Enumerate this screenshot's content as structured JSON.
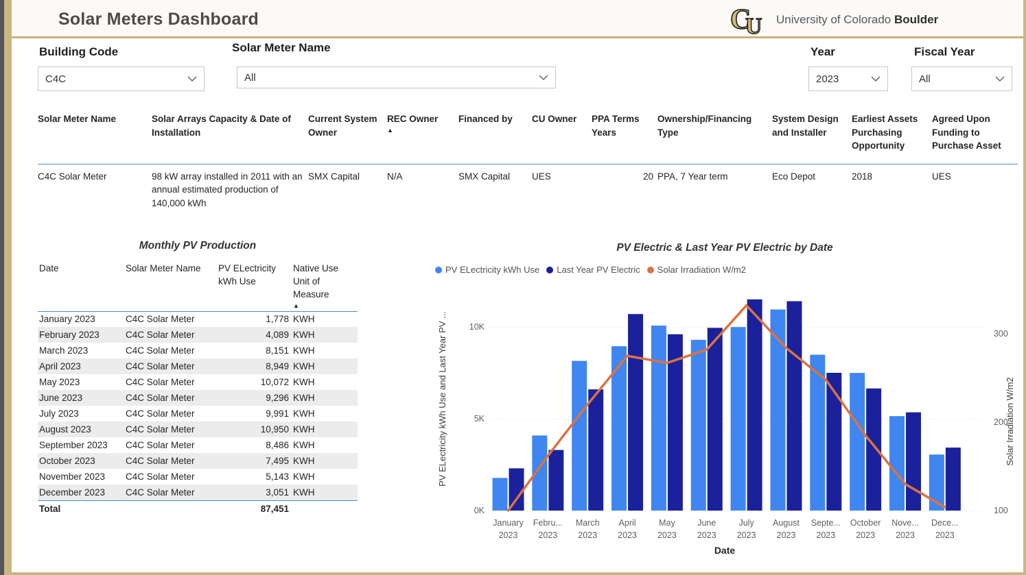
{
  "header": {
    "title": "Solar Meters Dashboard",
    "logo": {
      "monogram": "CU",
      "university": "University of Colorado",
      "campus": "Boulder"
    }
  },
  "filters": {
    "building_code": {
      "label": "Building Code",
      "value": "C4C"
    },
    "solar_meter_name": {
      "label": "Solar Meter Name",
      "value": "All"
    },
    "year": {
      "label": "Year",
      "value": "2023"
    },
    "fiscal_year": {
      "label": "Fiscal Year",
      "value": "All"
    }
  },
  "meter_table": {
    "columns": [
      "Solar Meter Name",
      "Solar Arrays Capacity & Date of Installation",
      "Current System Owner",
      "REC Owner",
      "Financed by",
      "CU Owner",
      "PPA Terms Years",
      "Ownership/Financing Type",
      "System Design and Installer",
      "Earliest Assets Purchasing Opportunity",
      "Agreed Upon Funding to Purchase Asset"
    ],
    "sort_column_index": 3,
    "sort_indicator": "▲",
    "row": [
      "C4C Solar Meter",
      "98 kW array installed in 2011 with an annual estimated production of 140,000 kWh",
      "SMX Capital",
      "N/A",
      "SMX Capital",
      "UES",
      "20",
      "PPA, 7 Year term",
      "Eco Depot",
      "2018",
      "UES"
    ],
    "numeric_column_indexes": [
      6
    ]
  },
  "monthly_table": {
    "title": "Monthly PV Production",
    "columns": [
      "Date",
      "Solar Meter Name",
      "PV ELectricity kWh Use",
      "Native Use Unit of Measure"
    ],
    "sort_column_index": 3,
    "sort_indicator": "▲",
    "rows": [
      [
        "January 2023",
        "C4C Solar Meter",
        "1,778",
        "KWH"
      ],
      [
        "February 2023",
        "C4C Solar Meter",
        "4,089",
        "KWH"
      ],
      [
        "March 2023",
        "C4C Solar Meter",
        "8,151",
        "KWH"
      ],
      [
        "April 2023",
        "C4C Solar Meter",
        "8,949",
        "KWH"
      ],
      [
        "May 2023",
        "C4C Solar Meter",
        "10,072",
        "KWH"
      ],
      [
        "June 2023",
        "C4C Solar Meter",
        "9,296",
        "KWH"
      ],
      [
        "July 2023",
        "C4C Solar Meter",
        "9,991",
        "KWH"
      ],
      [
        "August 2023",
        "C4C Solar Meter",
        "10,950",
        "KWH"
      ],
      [
        "September 2023",
        "C4C Solar Meter",
        "8,486",
        "KWH"
      ],
      [
        "October 2023",
        "C4C Solar Meter",
        "7,495",
        "KWH"
      ],
      [
        "November 2023",
        "C4C Solar Meter",
        "5,143",
        "KWH"
      ],
      [
        "December 2023",
        "C4C Solar Meter",
        "3,051",
        "KWH"
      ]
    ],
    "total_label": "Total",
    "total_value": "87,451"
  },
  "chart_data": {
    "type": "combo-bar-line",
    "title": "PV Electric & Last Year PV Electric by Date",
    "xlabel": "Date",
    "x_categories": [
      "January 2023",
      "February 2023",
      "March 2023",
      "April 2023",
      "May 2023",
      "June 2023",
      "July 2023",
      "August 2023",
      "September 2023",
      "October 2023",
      "November 2023",
      "December 2023"
    ],
    "x_tick_labels": [
      [
        "January",
        "2023"
      ],
      [
        "Febru...",
        "2023"
      ],
      [
        "March",
        "2023"
      ],
      [
        "April",
        "2023"
      ],
      [
        "May",
        "2023"
      ],
      [
        "June",
        "2023"
      ],
      [
        "July",
        "2023"
      ],
      [
        "August",
        "2023"
      ],
      [
        "Septe...",
        "2023"
      ],
      [
        "October",
        "2023"
      ],
      [
        "Nove...",
        "2023"
      ],
      [
        "Dece...",
        "2023"
      ]
    ],
    "y_left": {
      "title": "PV ELectricity kWh Use and Last Year PV ...",
      "ticks": [
        {
          "label": "0K",
          "value": 0
        },
        {
          "label": "5K",
          "value": 5000
        },
        {
          "label": "10K",
          "value": 10000
        }
      ],
      "range": [
        0,
        12100
      ]
    },
    "y_right": {
      "title": "Solar Irradiation W/m2",
      "ticks": [
        {
          "label": "100",
          "value": 100
        },
        {
          "label": "200",
          "value": 200
        },
        {
          "label": "300",
          "value": 300
        }
      ],
      "range": [
        100,
        350
      ]
    },
    "grid": "horizontal-dotted",
    "legend_position": "top-left",
    "series": [
      {
        "name": "PV ELectricity kWh Use",
        "type": "bar",
        "axis": "left",
        "color": "#3F86F0",
        "values": [
          1778,
          4089,
          8151,
          8949,
          10072,
          9296,
          9991,
          10950,
          8486,
          7495,
          5143,
          3051
        ]
      },
      {
        "name": "Last Year PV Electric",
        "type": "bar",
        "axis": "left",
        "color": "#1B219B",
        "values": [
          2300,
          3300,
          6600,
          10700,
          9600,
          9950,
          11500,
          11400,
          7500,
          6650,
          5350,
          3430
        ]
      },
      {
        "name": "Solar Irradiation W/m2",
        "type": "line",
        "axis": "right",
        "color": "#DC7240",
        "values": [
          100,
          162,
          220,
          275,
          267,
          282,
          332,
          284,
          248,
          185,
          130,
          104
        ]
      }
    ]
  }
}
